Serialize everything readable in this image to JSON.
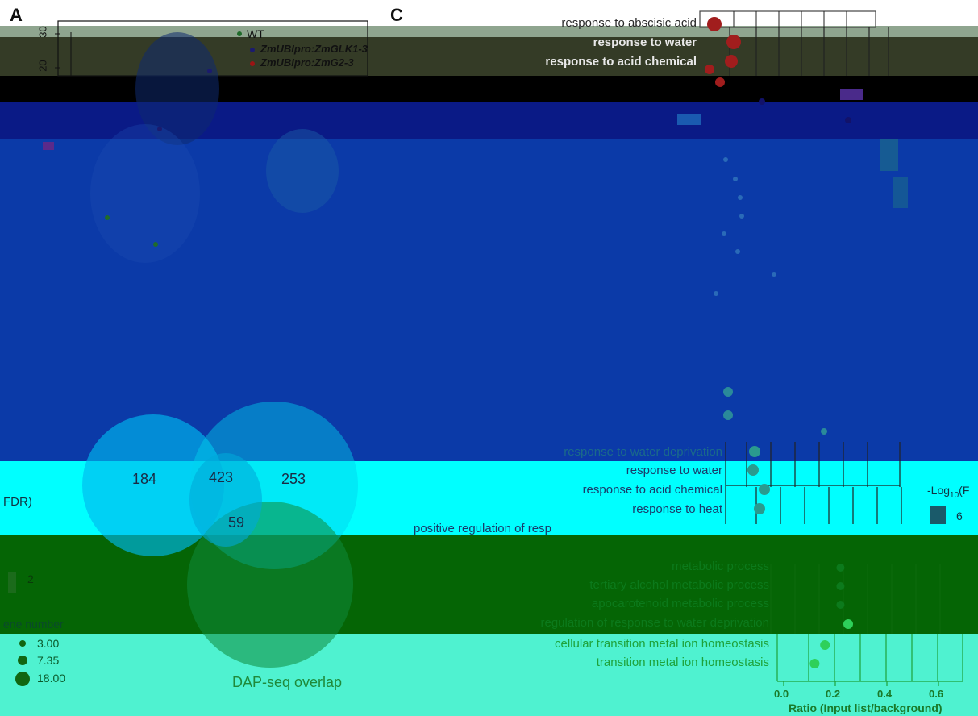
{
  "panels": {
    "a": "A",
    "c": "C"
  },
  "colors": {
    "top_band": "#8fa58f",
    "olive_band": "#343b26",
    "black_band": "#000000",
    "navy_band": "#0a1a86",
    "blue_band": "#0b3aa8",
    "cyan_band": "#00ffff",
    "green_band": "#056505",
    "mint_band": "#4ff2d0",
    "wt_dot": "#1f6b2a",
    "glk_dot": "#1b1b6e",
    "g2_dot": "#9b1414",
    "c_top_dot": "#a11d1d",
    "c_mid_dot": "#2a9a8e",
    "c_bottom_dot": "#2a8f2a"
  },
  "panel_a": {
    "y_ticks": [
      "30",
      "20"
    ],
    "legend": [
      "WT",
      "ZmUBIpro:ZmGLK1-3",
      "ZmUBIpro:ZmG2-3"
    ]
  },
  "panel_b": {
    "venn_counts": {
      "left": "184",
      "center": "423",
      "right": "253",
      "triple": "59"
    },
    "set_label": "DAP-seq overlap",
    "fdr_fragment": "FDR)",
    "tick_two": "2",
    "size_legend_title": "ene number",
    "size_legend": [
      "3.00",
      "7.35",
      "18.00"
    ]
  },
  "panel_c": {
    "color_legend_title": "-Log",
    "color_legend_sub": "10",
    "color_legend_suffix": "(F",
    "color_legend_value": "6",
    "x_label": "Ratio (Input list/background)",
    "x_ticks": [
      "0.0",
      "0.2",
      "0.4",
      "0.6"
    ],
    "terms_top": [
      "response to abscisic acid",
      "response to water",
      "response to acid chemical"
    ],
    "terms_mid": [
      "response to water deprivation",
      "response to water",
      "response to acid chemical",
      "response to heat",
      "positive regulation of resp"
    ],
    "terms_bottom": [
      "metabolic process",
      "tertiary alcohol metabolic process",
      "apocarotenoid metabolic process",
      "regulation of response to water deprivation",
      "cellular transition metal ion homeostasis",
      "transition metal ion homeostasis"
    ]
  },
  "chart_data": [
    {
      "type": "scatter",
      "title": "",
      "xlabel": "",
      "ylabel": "",
      "y_ticks": [
        30,
        20
      ],
      "legend": [
        "WT",
        "ZmUBIpro:ZmGLK1-3",
        "ZmUBIpro:ZmG2-3"
      ]
    },
    {
      "type": "scatter",
      "title": "",
      "xlabel": "Ratio (Input list/background)",
      "ylabel": "",
      "x_ticks": [
        0.0,
        0.2,
        0.4,
        0.6
      ],
      "xlim": [
        0.0,
        0.7
      ],
      "categories": [
        "metabolic process",
        "tertiary alcohol metabolic process",
        "apocarotenoid metabolic process",
        "regulation of response to water deprivation",
        "cellular transition metal ion homeostasis",
        "transition metal ion homeostasis"
      ],
      "values": [
        0.22,
        0.22,
        0.22,
        0.25,
        0.16,
        0.12
      ]
    }
  ]
}
